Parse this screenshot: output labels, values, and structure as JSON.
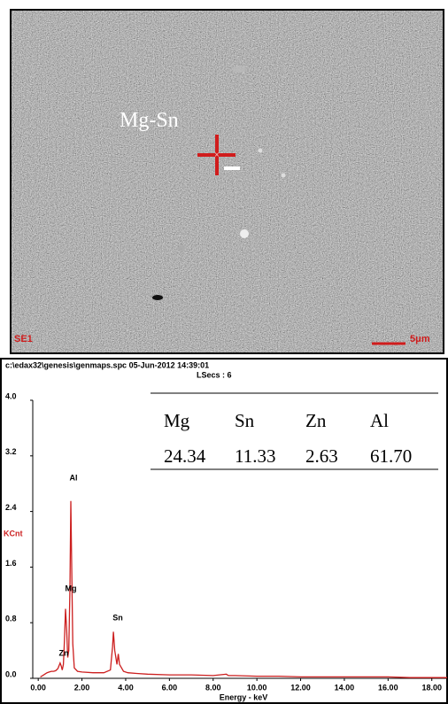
{
  "image": {
    "label": "Mg-Sn",
    "corner_label": "SE1",
    "scale_label": "5μm"
  },
  "chart_data": {
    "type": "line",
    "title": "c:\\edax32\\genesis\\genmaps.spc  05-Jun-2012 14:39:01",
    "subtitle": "LSecs : 6",
    "y_label": "KCnt",
    "x_label": "Energy - keV",
    "color": "#cc1f1f",
    "x": [
      0.1,
      0.2,
      0.3,
      0.4,
      0.5,
      0.6,
      0.7,
      0.8,
      0.9,
      1.0,
      1.05,
      1.1,
      1.15,
      1.2,
      1.25,
      1.3,
      1.35,
      1.4,
      1.45,
      1.49,
      1.53,
      1.58,
      1.65,
      1.8,
      2.0,
      2.5,
      3.0,
      3.3,
      3.4,
      3.44,
      3.5,
      3.6,
      3.66,
      3.72,
      3.9,
      4.1,
      4.5,
      5,
      6,
      7,
      8,
      8.6,
      8.7,
      9,
      10,
      11,
      12,
      13,
      14,
      15,
      16,
      17,
      18,
      18.7
    ],
    "values": [
      0.02,
      0.04,
      0.06,
      0.08,
      0.09,
      0.1,
      0.1,
      0.11,
      0.14,
      0.22,
      0.18,
      0.12,
      0.2,
      0.55,
      1.0,
      0.7,
      0.3,
      0.4,
      1.3,
      2.55,
      1.6,
      0.5,
      0.15,
      0.1,
      0.09,
      0.08,
      0.08,
      0.12,
      0.45,
      0.67,
      0.4,
      0.2,
      0.35,
      0.2,
      0.1,
      0.08,
      0.07,
      0.06,
      0.05,
      0.05,
      0.04,
      0.06,
      0.04,
      0.04,
      0.03,
      0.03,
      0.02,
      0.02,
      0.02,
      0.02,
      0.02,
      0.01,
      0.01,
      0.01
    ],
    "annotations": [
      "Al",
      "Mg",
      "Sn",
      "Zn"
    ],
    "xlim": [
      -0.25,
      18.7
    ],
    "ylim": [
      0,
      4.0
    ],
    "xticks": [
      {
        "value": 0,
        "label": "0.00"
      },
      {
        "value": 2,
        "label": "2.00"
      },
      {
        "value": 4,
        "label": "4.00"
      },
      {
        "value": 6,
        "label": "6.00"
      },
      {
        "value": 8,
        "label": "8.00"
      },
      {
        "value": 10,
        "label": "10.00"
      },
      {
        "value": 12,
        "label": "12.00"
      },
      {
        "value": 14,
        "label": "14.00"
      },
      {
        "value": 16,
        "label": "16.00"
      },
      {
        "value": 18,
        "label": "18.00"
      }
    ],
    "yticks": [
      {
        "value": 0,
        "label": "0.0"
      },
      0.8,
      1.6,
      2.4,
      3.2,
      {
        "value": 4,
        "label": "4.0"
      }
    ],
    "table": {
      "header": [
        "Mg",
        "Sn",
        "Zn",
        "Al"
      ],
      "rows": [
        [
          "24.34",
          "11.33",
          "2.63",
          "61.70"
        ]
      ]
    }
  }
}
